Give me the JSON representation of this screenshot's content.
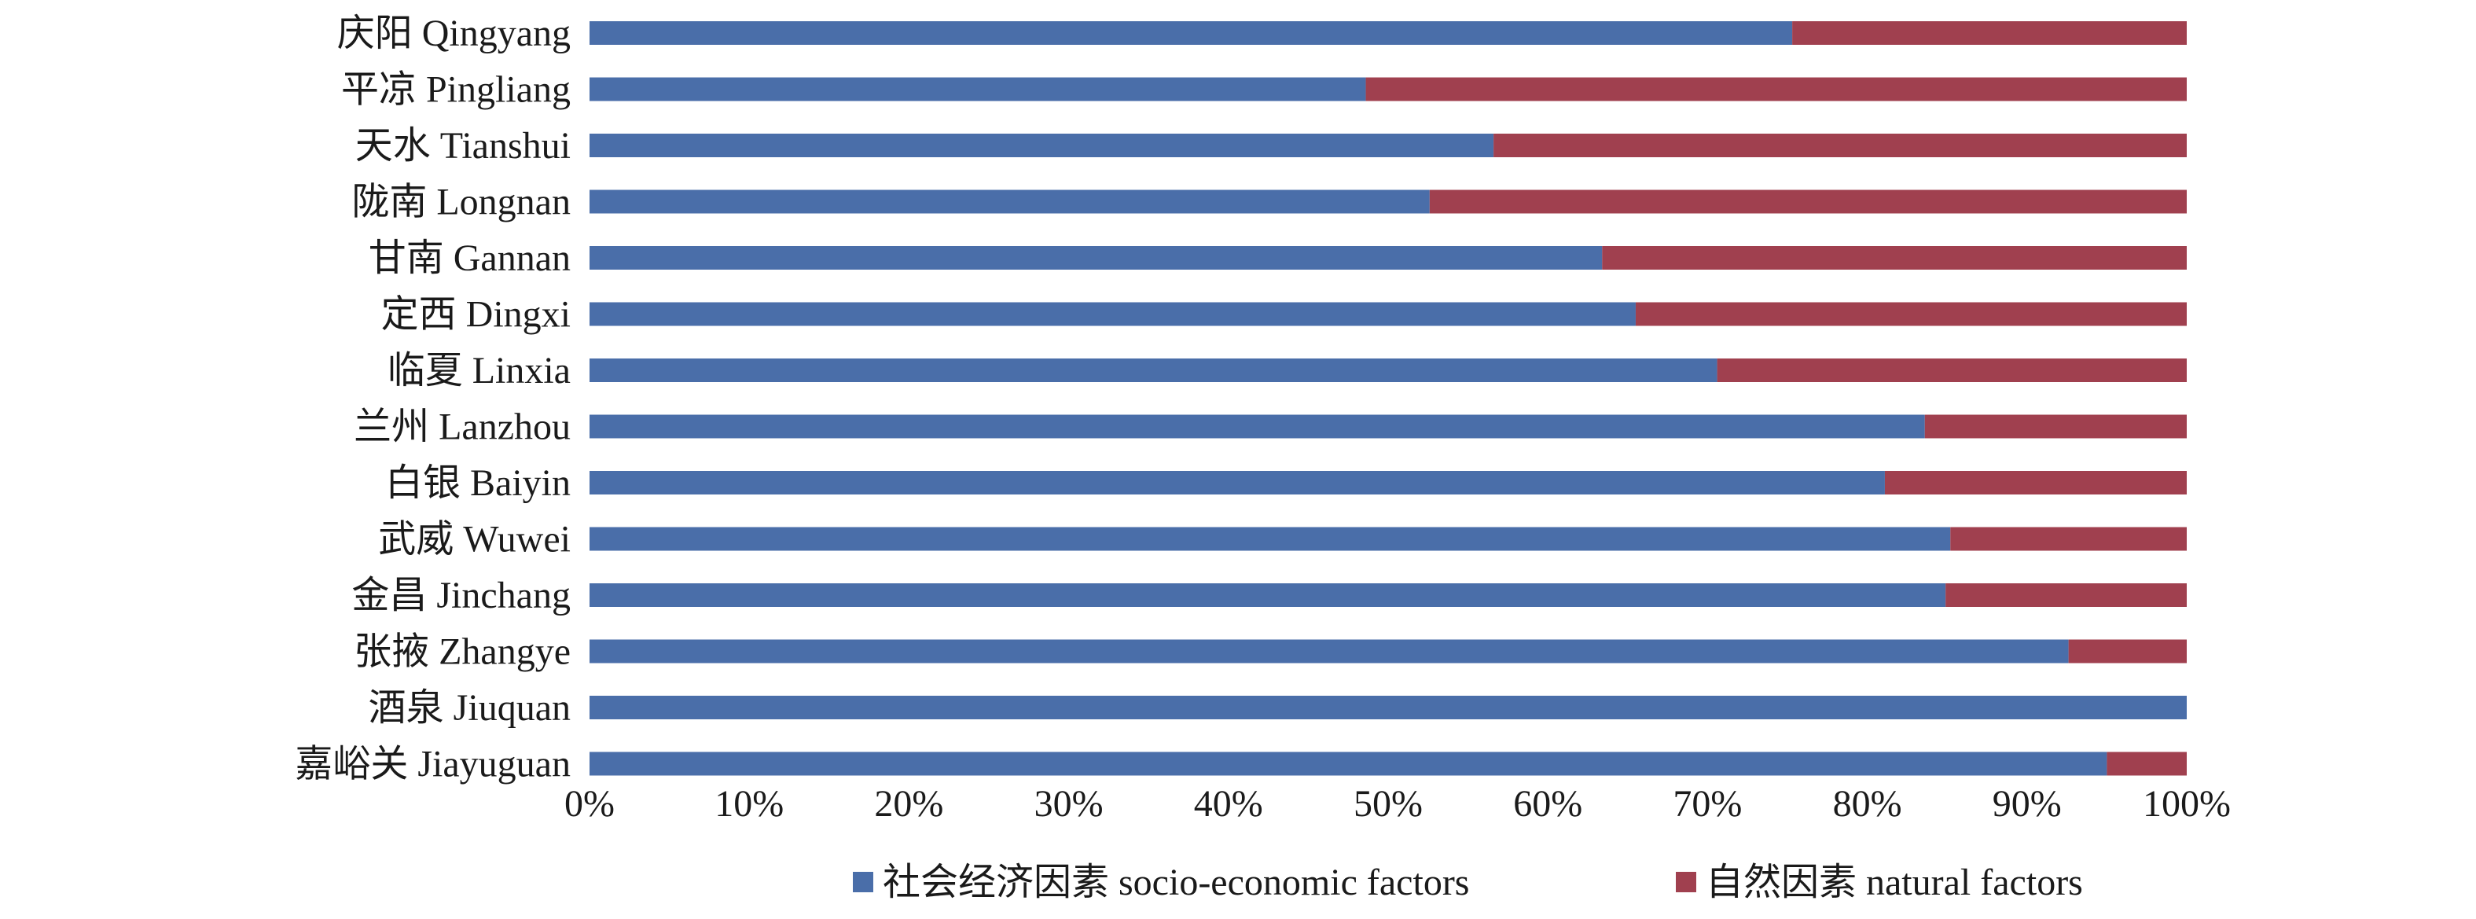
{
  "chart_data": {
    "type": "bar",
    "orientation": "horizontal",
    "stacked": "percent",
    "categories": [
      "庆阳 Qingyang",
      "平凉 Pingliang",
      "天水 Tianshui",
      "陇南 Longnan",
      "甘南 Gannan",
      "定西 Dingxi",
      "临夏 Linxia",
      "兰州 Lanzhou",
      "白银 Baiyin",
      "武威 Wuwei",
      "金昌 Jinchang",
      "张掖 Zhangye",
      "酒泉 Jiuquan",
      "嘉峪关 Jiayuguan"
    ],
    "series": [
      {
        "name": "社会经济因素 socio-economic factors",
        "color": "#4a6ea9",
        "values": [
          75.3,
          48.6,
          56.6,
          52.6,
          63.4,
          65.5,
          70.6,
          83.6,
          81.1,
          85.2,
          84.9,
          92.6,
          100.0,
          95.0
        ]
      },
      {
        "name": "自然因素 natural factors",
        "color": "#a0404f",
        "values": [
          24.7,
          51.4,
          43.4,
          47.4,
          36.6,
          34.5,
          29.4,
          16.4,
          18.9,
          14.8,
          15.1,
          7.4,
          0.0,
          5.0
        ]
      }
    ],
    "xticks": [
      "0%",
      "10%",
      "20%",
      "30%",
      "40%",
      "50%",
      "60%",
      "70%",
      "80%",
      "90%",
      "100%"
    ],
    "xlim": [
      0,
      100
    ],
    "title": "",
    "xlabel": "",
    "ylabel": "",
    "grid": false,
    "legend_position": "bottom"
  }
}
